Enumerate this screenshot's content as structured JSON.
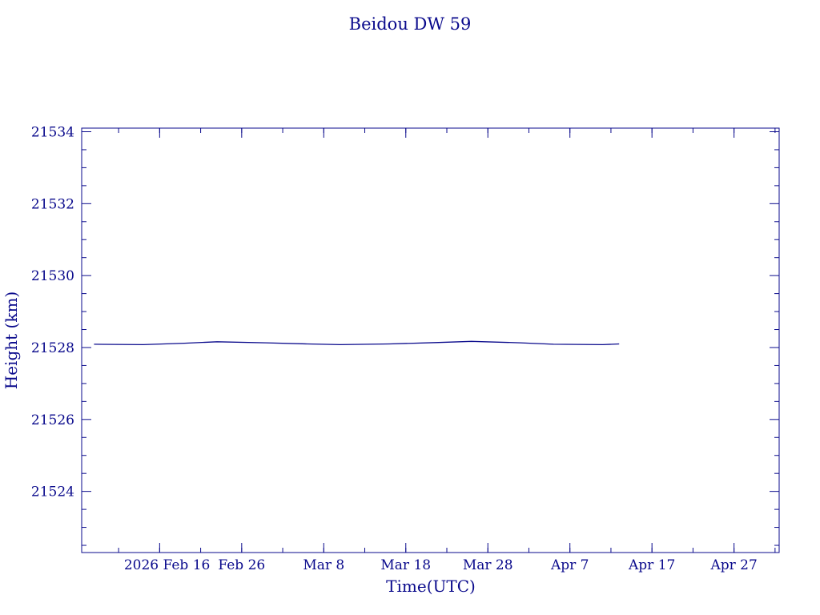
{
  "chart_data": {
    "type": "line",
    "title": "Beidou DW 59",
    "xlabel": "Time(UTC)",
    "ylabel": "Height (km)",
    "color": "#0a0a8c",
    "x_tick_labels": [
      "2026 Feb 16",
      "Feb 26",
      "Mar  8",
      "Mar 18",
      "Mar 28",
      "Apr  7",
      "Apr 17",
      "Apr 27"
    ],
    "x_tick_dates": [
      "2026-02-16",
      "2026-02-26",
      "2026-03-08",
      "2026-03-18",
      "2026-03-28",
      "2026-04-07",
      "2026-04-17",
      "2026-04-27"
    ],
    "xlim": [
      "2026-02-06T12:00",
      "2026-05-02T12:00"
    ],
    "y_ticks": [
      21524,
      21526,
      21528,
      21530,
      21532,
      21534
    ],
    "ylim": [
      21522.3,
      21534.1
    ],
    "grid": false,
    "series": [
      {
        "x": [
          "2026-02-08",
          "2026-02-14",
          "2026-02-19",
          "2026-02-23",
          "2026-03-01",
          "2026-03-06",
          "2026-03-10",
          "2026-03-16",
          "2026-03-22",
          "2026-03-26",
          "2026-04-01",
          "2026-04-05",
          "2026-04-11",
          "2026-04-13"
        ],
        "y": [
          21528.09,
          21528.08,
          21528.12,
          21528.16,
          21528.13,
          21528.1,
          21528.08,
          21528.1,
          21528.14,
          21528.17,
          21528.13,
          21528.09,
          21528.08,
          21528.1
        ]
      }
    ]
  }
}
